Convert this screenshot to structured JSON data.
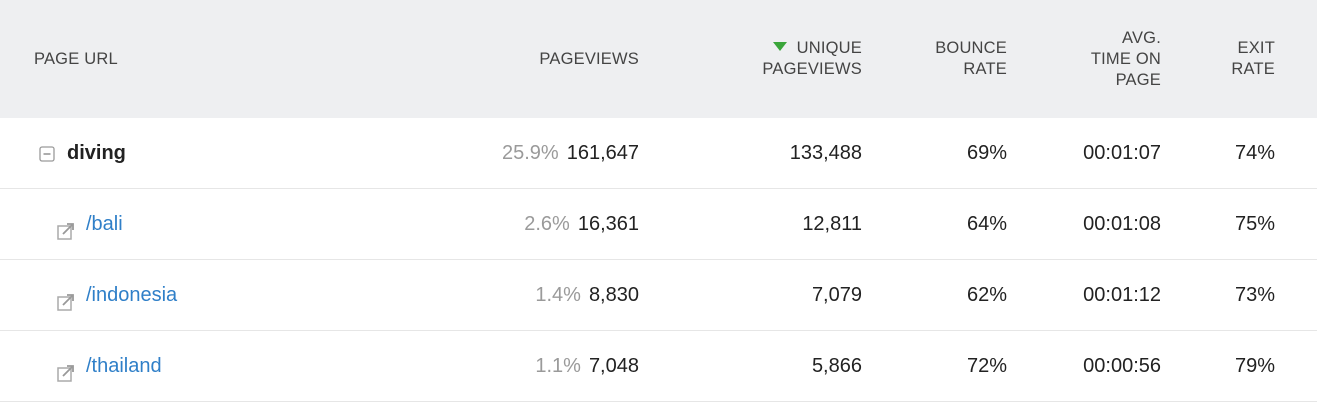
{
  "table": {
    "columns": [
      [
        "PAGE URL"
      ],
      [
        "PAGEVIEWS"
      ],
      [
        "UNIQUE",
        "PAGEVIEWS"
      ],
      [
        "BOUNCE",
        "RATE"
      ],
      [
        "AVG.",
        "TIME ON",
        "PAGE"
      ],
      [
        "EXIT",
        "RATE"
      ]
    ],
    "rows": [
      {
        "label": "diving",
        "share": "25.9%",
        "cells": [
          "161,647",
          "133,488",
          "69%",
          "00:01:07",
          "74%"
        ]
      },
      {
        "label": "/bali",
        "share": "2.6%",
        "cells": [
          "16,361",
          "12,811",
          "64%",
          "00:01:08",
          "75%"
        ]
      },
      {
        "label": "/indonesia",
        "share": "1.4%",
        "cells": [
          "8,830",
          "7,079",
          "62%",
          "00:01:12",
          "73%"
        ]
      },
      {
        "label": "/thailand",
        "share": "1.1%",
        "cells": [
          "7,048",
          "5,866",
          "72%",
          "00:00:56",
          "79%"
        ]
      }
    ]
  }
}
